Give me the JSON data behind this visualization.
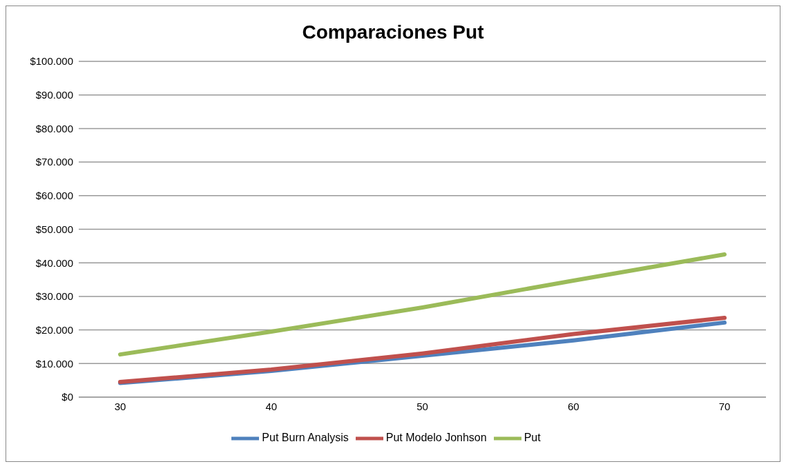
{
  "chart_data": {
    "type": "line",
    "title": "Comparaciones Put",
    "categories": [
      "30",
      "40",
      "50",
      "60",
      "70"
    ],
    "series": [
      {
        "name": "Put Burn Analysis",
        "color": "#4f81bd",
        "values": [
          4200,
          7800,
          12300,
          16900,
          22200
        ]
      },
      {
        "name": "Put Modelo Jonhson",
        "color": "#c0504d",
        "values": [
          4500,
          8200,
          13000,
          18800,
          23600
        ]
      },
      {
        "name": "Put",
        "color": "#9bbb59",
        "values": [
          12700,
          19500,
          26700,
          34700,
          42500
        ]
      }
    ],
    "ylim": [
      0,
      100000
    ],
    "yticks": [
      {
        "value": 0,
        "label": "$0"
      },
      {
        "value": 10000,
        "label": "$10.000"
      },
      {
        "value": 20000,
        "label": "$20.000"
      },
      {
        "value": 30000,
        "label": "$30.000"
      },
      {
        "value": 40000,
        "label": "$40.000"
      },
      {
        "value": 50000,
        "label": "$50.000"
      },
      {
        "value": 60000,
        "label": "$60.000"
      },
      {
        "value": 70000,
        "label": "$70.000"
      },
      {
        "value": 80000,
        "label": "$80.000"
      },
      {
        "value": 90000,
        "label": "$90.000"
      },
      {
        "value": 100000,
        "label": "$100.000"
      }
    ],
    "grid": "y",
    "legend": "bottom",
    "marker": "none",
    "line_style": "solid"
  }
}
